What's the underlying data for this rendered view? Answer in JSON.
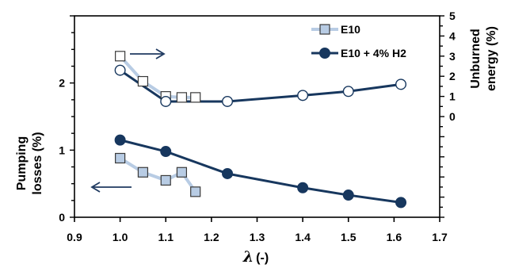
{
  "chart_data": {
    "type": "line",
    "xlabel_symbol": "λ",
    "xlabel_unit": "(-)",
    "ylabel_left": [
      "Pumping",
      "losses (%)"
    ],
    "ylabel_right": [
      "Unburned",
      "energy (%)"
    ],
    "xlim": [
      0.9,
      1.7
    ],
    "x_ticks": [
      "0.9",
      "1.0",
      "1.1",
      "1.2",
      "1.3",
      "1.4",
      "1.5",
      "1.6",
      "1.7"
    ],
    "ylim_left": [
      0,
      3
    ],
    "y_ticks_left": [
      "0",
      "1",
      "2"
    ],
    "ylim_right": [
      -5,
      5
    ],
    "y_ticks_right": [
      "0",
      "1",
      "2",
      "3",
      "4",
      "5"
    ],
    "legend_position": "top-right",
    "series": [
      {
        "name": "E10",
        "marker": "square",
        "line_color": "#b8cce4",
        "marker_fill_unburned": "#ffffff",
        "marker_fill_pumping": "#b8cce4",
        "unburned_energy": {
          "x": [
            1.0,
            1.05,
            1.1,
            1.135,
            1.165
          ],
          "y": [
            3.0,
            1.75,
            1.0,
            0.95,
            0.95
          ]
        },
        "pumping_losses": {
          "x": [
            1.0,
            1.05,
            1.1,
            1.135,
            1.165
          ],
          "y": [
            0.88,
            0.67,
            0.55,
            0.67,
            0.38
          ]
        }
      },
      {
        "name": "E10 + 4% H2",
        "marker": "circle",
        "line_color": "#17375e",
        "marker_fill_unburned": "#ffffff",
        "marker_fill_pumping": "#17375e",
        "unburned_energy": {
          "x": [
            1.0,
            1.1,
            1.235,
            1.4,
            1.5,
            1.615
          ],
          "y": [
            2.3,
            0.75,
            0.75,
            1.05,
            1.25,
            1.6
          ]
        },
        "pumping_losses": {
          "x": [
            1.0,
            1.1,
            1.235,
            1.4,
            1.5,
            1.615
          ],
          "y": [
            1.15,
            0.98,
            0.65,
            0.44,
            0.33,
            0.22
          ]
        }
      }
    ]
  },
  "icons": {
    "right_arrow": "arrow-right-icon",
    "left_arrow": "arrow-left-icon"
  }
}
